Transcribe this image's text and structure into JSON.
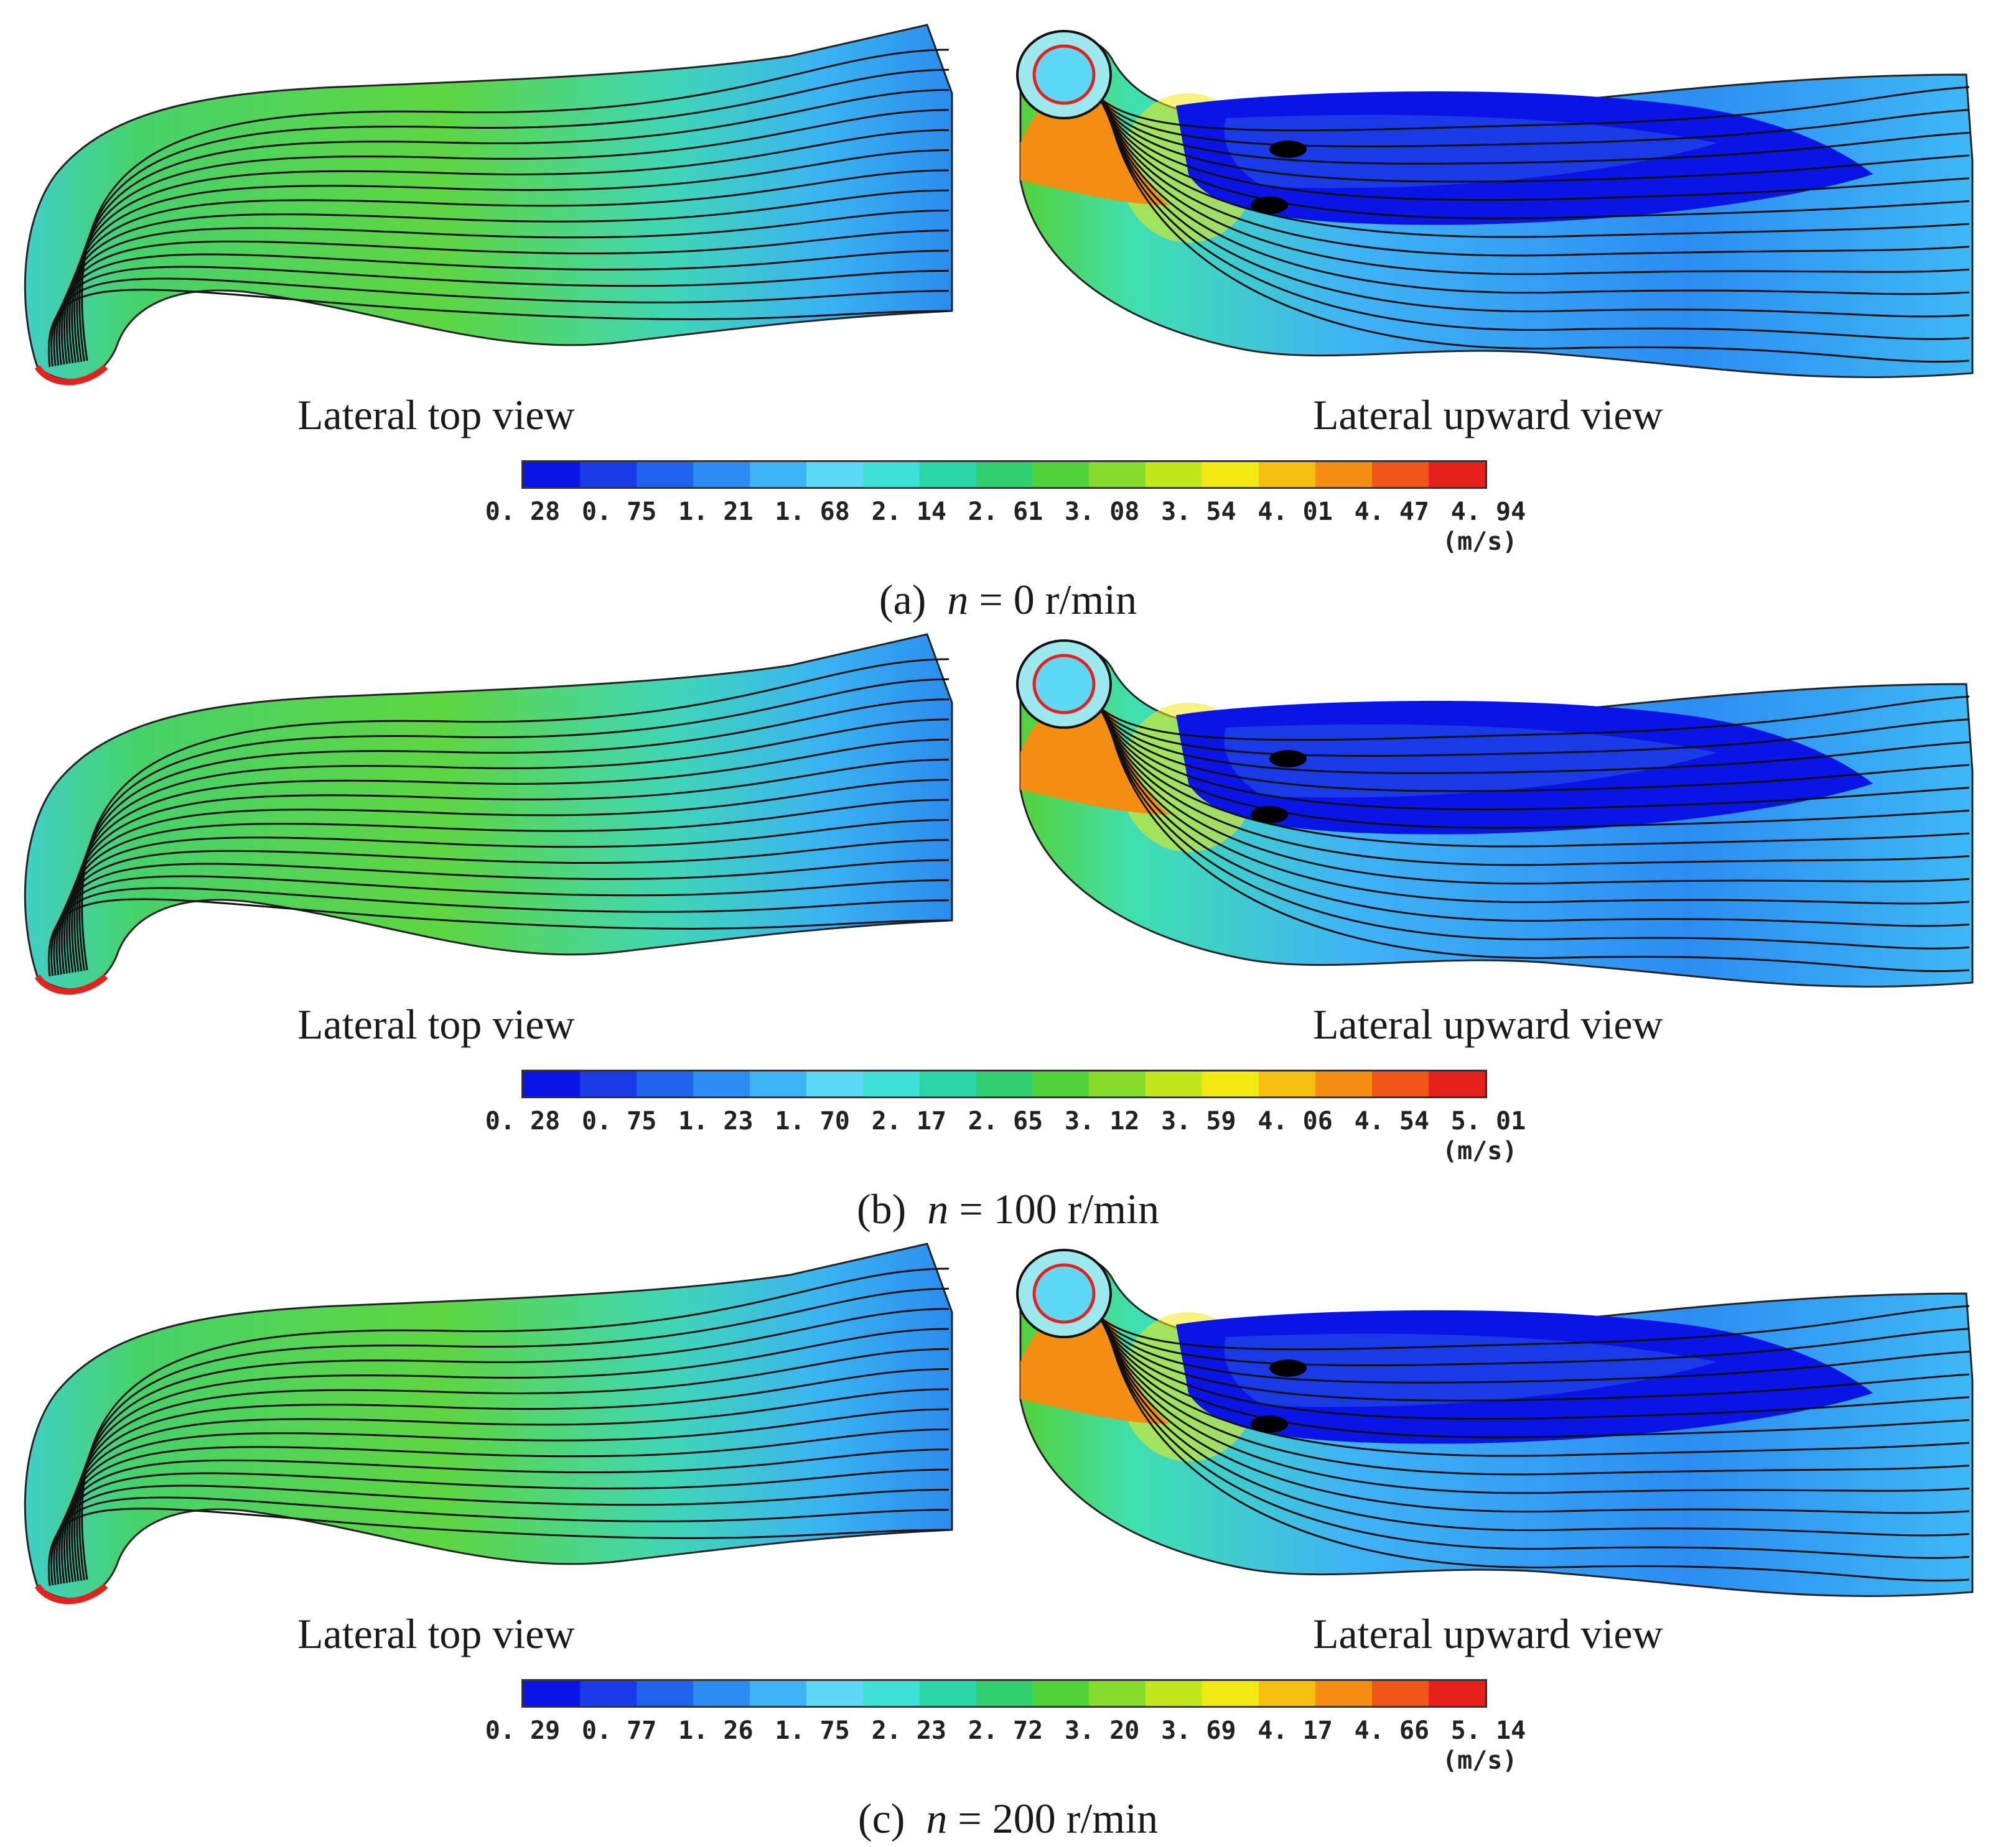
{
  "colormap": [
    "#0a14e6",
    "#1a3ae8",
    "#1f63ec",
    "#2b8df2",
    "#3fb3f6",
    "#5fd8f6",
    "#3fe0d8",
    "#2ad6a8",
    "#30d070",
    "#52d23a",
    "#86dc2a",
    "#c4e61c",
    "#f3ea14",
    "#f7bf10",
    "#f38e12",
    "#ef5418",
    "#e8201c"
  ],
  "panels": [
    {
      "label_letter": "(a)",
      "var": "n",
      "eq": "= 0 r/min",
      "left_view_label": "Lateral top view",
      "right_view_label": "Lateral upward view",
      "ticks": [
        "0. 28",
        "0. 75",
        "1. 21",
        "1. 68",
        "2. 14",
        "2. 61",
        "3. 08",
        "3. 54",
        "4. 01",
        "4. 47",
        "4. 94"
      ],
      "unit": "(m/s)"
    },
    {
      "label_letter": "(b)",
      "var": "n",
      "eq": "= 100 r/min",
      "left_view_label": "Lateral top view",
      "right_view_label": "Lateral upward view",
      "ticks": [
        "0. 28",
        "0. 75",
        "1. 23",
        "1. 70",
        "2. 17",
        "2. 65",
        "3. 12",
        "3. 59",
        "4. 06",
        "4. 54",
        "5. 01"
      ],
      "unit": "(m/s)"
    },
    {
      "label_letter": "(c)",
      "var": "n",
      "eq": "= 200 r/min",
      "left_view_label": "Lateral top view",
      "right_view_label": "Lateral upward view",
      "ticks": [
        "0. 29",
        "0. 77",
        "1. 26",
        "1. 75",
        "2. 23",
        "2. 72",
        "3. 20",
        "3. 69",
        "4. 17",
        "4. 66",
        "5. 14"
      ],
      "unit": "(m/s)"
    }
  ]
}
